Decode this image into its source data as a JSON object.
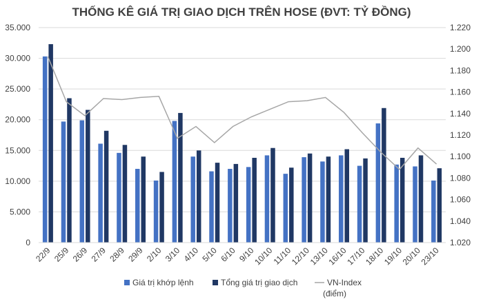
{
  "chart_data": {
    "type": "bar",
    "title": "THỐNG KÊ GIÁ TRỊ GIAO DỊCH TRÊN HOSE (ĐVT: TỶ ĐỒNG)",
    "categories": [
      "22/9",
      "25/9",
      "26/9",
      "27/9",
      "28/9",
      "29/9",
      "2/10",
      "3/10",
      "4/10",
      "5/10",
      "6/10",
      "9/10",
      "10/10",
      "11/10",
      "12/10",
      "13/10",
      "16/10",
      "17/10",
      "18/10",
      "19/10",
      "20/10",
      "23/10"
    ],
    "series": [
      {
        "name": "Giá trị khớp lệnh",
        "kind": "bar",
        "axis": "left",
        "color": "#4472C4",
        "values": [
          30300,
          19700,
          19900,
          16100,
          14600,
          12000,
          10100,
          19800,
          14000,
          11600,
          12000,
          12300,
          14200,
          11200,
          13900,
          13200,
          14200,
          12500,
          19400,
          12700,
          12400,
          10100
        ]
      },
      {
        "name": "Tổng giá trị giao dịch",
        "kind": "bar",
        "axis": "left",
        "color": "#203864",
        "values": [
          32300,
          23500,
          21600,
          18200,
          15900,
          14000,
          11500,
          21100,
          15000,
          13000,
          12800,
          13800,
          15400,
          12200,
          14500,
          14000,
          15200,
          13700,
          21900,
          13800,
          14200,
          12100
        ]
      },
      {
        "name": "VN-Index",
        "name_line2": "(điểm)",
        "kind": "line",
        "axis": "right",
        "color": "#a6a6a6",
        "values": [
          1193,
          1151,
          1138,
          1154,
          1153,
          1155,
          1156,
          1117,
          1128,
          1113,
          1128,
          1137,
          1144,
          1151,
          1152,
          1155,
          1141,
          1122,
          1104,
          1088,
          1108,
          1093
        ]
      }
    ],
    "y_left": {
      "ylim": [
        0,
        35000
      ],
      "ticks": [
        "0",
        "5.000",
        "10.000",
        "15.000",
        "20.000",
        "25.000",
        "30.000",
        "35.000"
      ],
      "tick_values": [
        0,
        5000,
        10000,
        15000,
        20000,
        25000,
        30000,
        35000
      ]
    },
    "y_right": {
      "ylim": [
        1020,
        1220
      ],
      "ticks": [
        "1.020",
        "1.040",
        "1.060",
        "1.080",
        "1.100",
        "1.120",
        "1.140",
        "1.160",
        "1.180",
        "1.200",
        "1.220"
      ],
      "tick_values": [
        1020,
        1040,
        1060,
        1080,
        1100,
        1120,
        1140,
        1160,
        1180,
        1200,
        1220
      ]
    },
    "grid": true,
    "legend_position": "bottom"
  }
}
